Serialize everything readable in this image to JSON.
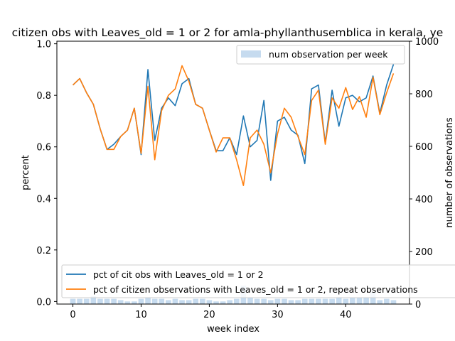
{
  "colors": {
    "series_a": "#1f77b4",
    "series_b": "#ff7f0e",
    "bars": "#c6dbef"
  },
  "chart_data": {
    "type": "line",
    "title": "citizen obs with Leaves_old = 1 or 2 for amla-phyllanthusemblica in kerala, ye",
    "xlabel": "week index",
    "ylabel": "percent",
    "y2label": "number of observations",
    "xlim": [
      -2.35,
      49.35
    ],
    "ylim": [
      -0.01,
      1.01
    ],
    "y2lim": [
      0,
      1000
    ],
    "xticks": [
      0,
      10,
      20,
      30,
      40
    ],
    "yticks": [
      0.0,
      0.2,
      0.4,
      0.6,
      0.8,
      1.0
    ],
    "y2ticks": [
      0,
      200,
      400,
      600,
      800,
      1000
    ],
    "x": [
      0,
      1,
      2,
      3,
      4,
      5,
      6,
      7,
      8,
      9,
      10,
      11,
      12,
      13,
      14,
      15,
      16,
      17,
      18,
      19,
      20,
      21,
      22,
      23,
      24,
      25,
      26,
      27,
      28,
      29,
      30,
      31,
      32,
      33,
      34,
      35,
      36,
      37,
      38,
      39,
      40,
      41,
      42,
      43,
      44,
      45,
      46,
      47
    ],
    "series": [
      {
        "name": "pct of cit obs with Leaves_old = 1 or 2",
        "values": [
          0.84,
          0.865,
          0.81,
          0.765,
          0.67,
          0.59,
          0.61,
          0.64,
          0.665,
          0.75,
          0.57,
          0.9,
          0.625,
          0.75,
          0.79,
          0.76,
          0.845,
          0.865,
          0.765,
          0.75,
          0.665,
          0.585,
          0.585,
          0.635,
          0.57,
          0.72,
          0.6,
          0.625,
          0.78,
          0.47,
          0.7,
          0.715,
          0.665,
          0.645,
          0.535,
          0.825,
          0.84,
          0.615,
          0.82,
          0.68,
          0.79,
          0.8,
          0.775,
          0.79,
          0.875,
          0.73,
          0.84,
          0.92
        ]
      },
      {
        "name": "pct of citizen observations with Leaves_old = 1 or 2, repeat observations",
        "values": [
          0.84,
          0.865,
          0.81,
          0.765,
          0.67,
          0.59,
          0.59,
          0.64,
          0.665,
          0.75,
          0.575,
          0.835,
          0.55,
          0.74,
          0.8,
          0.825,
          0.915,
          0.855,
          0.765,
          0.75,
          0.665,
          0.58,
          0.635,
          0.635,
          0.55,
          0.45,
          0.635,
          0.665,
          0.61,
          0.5,
          0.65,
          0.75,
          0.715,
          0.64,
          0.57,
          0.78,
          0.82,
          0.61,
          0.79,
          0.75,
          0.83,
          0.745,
          0.795,
          0.715,
          0.87,
          0.725,
          0.81,
          0.885
        ]
      },
      {
        "name": "num observation per week",
        "type": "bar",
        "axis": "y2",
        "values": [
          20,
          20,
          20,
          30,
          20,
          20,
          20,
          15,
          10,
          10,
          20,
          25,
          20,
          20,
          15,
          20,
          15,
          15,
          20,
          20,
          15,
          10,
          10,
          15,
          20,
          70,
          25,
          20,
          20,
          15,
          20,
          20,
          15,
          15,
          20,
          20,
          20,
          20,
          20,
          25,
          20,
          25,
          25,
          25,
          45,
          15,
          20,
          15
        ]
      }
    ],
    "legend": {
      "upper_right": "top-right",
      "lower": "bottom-left"
    }
  }
}
